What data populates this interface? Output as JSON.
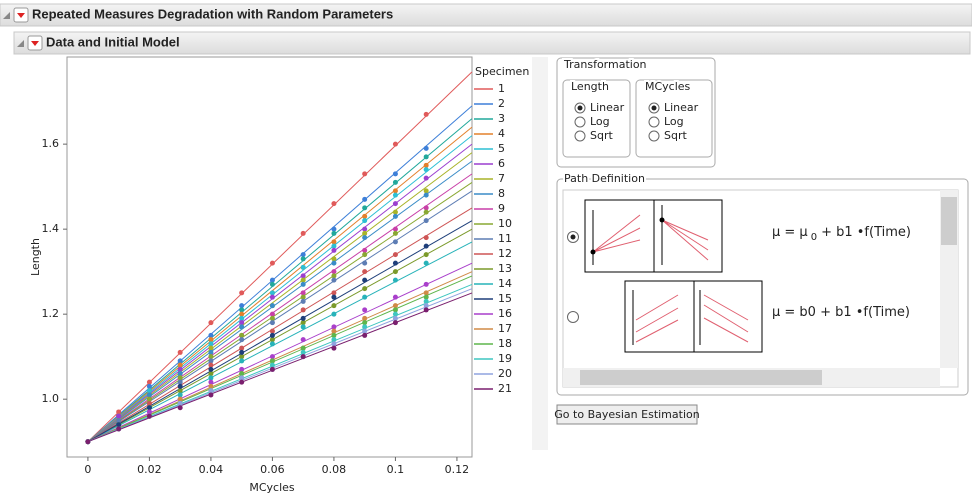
{
  "outline": {
    "title": "Repeated Measures Degradation with Random Parameters",
    "subtitle": "Data and Initial Model"
  },
  "chart_data": {
    "type": "scatter",
    "x_label": "MCycles",
    "y_label": "Length",
    "legend_title": "Specimen",
    "xlim": [
      -0.0068,
      0.1249
    ],
    "ylim": [
      0.864,
      1.805
    ],
    "xticks": [
      0,
      0.02,
      0.04,
      0.06,
      0.08,
      0.1,
      0.12
    ],
    "yticks": [
      {
        "value": 1,
        "label": "1.0"
      },
      {
        "value": 1.2,
        "label": "1.2"
      },
      {
        "value": 1.4,
        "label": "1.4"
      },
      {
        "value": 1.6,
        "label": "1.6"
      }
    ],
    "x": [
      0,
      0.01,
      0.02,
      0.03,
      0.04,
      0.05,
      0.06,
      0.07,
      0.08,
      0.09,
      0.1,
      0.11
    ],
    "fit_x": [
      0,
      0.1249
    ],
    "series": [
      {
        "name": "1",
        "color": "#e05a5a",
        "values": [
          0.9,
          0.97,
          1.04,
          1.11,
          1.18,
          1.25,
          1.32,
          1.39,
          1.46,
          1.53,
          1.6,
          1.67
        ],
        "fit": [
          0.9,
          1.77
        ]
      },
      {
        "name": "2",
        "color": "#3d7fd8",
        "values": [
          0.9,
          0.96,
          1.03,
          1.09,
          1.15,
          1.22,
          1.28,
          1.34,
          1.4,
          1.47,
          1.53,
          1.59
        ],
        "fit": [
          0.9,
          1.69
        ]
      },
      {
        "name": "3",
        "color": "#21a89b",
        "values": [
          0.9,
          0.96,
          1.02,
          1.08,
          1.14,
          1.21,
          1.27,
          1.33,
          1.39,
          1.45,
          1.51,
          1.57
        ],
        "fit": [
          0.9,
          1.66
        ]
      },
      {
        "name": "4",
        "color": "#e3802c",
        "values": [
          0.9,
          0.96,
          1.02,
          1.08,
          1.14,
          1.2,
          1.25,
          1.31,
          1.37,
          1.43,
          1.49,
          1.55
        ],
        "fit": [
          0.9,
          1.64
        ]
      },
      {
        "name": "5",
        "color": "#2dbfd4",
        "values": [
          0.9,
          0.96,
          1.02,
          1.07,
          1.13,
          1.19,
          1.25,
          1.31,
          1.36,
          1.42,
          1.48,
          1.54
        ],
        "fit": [
          0.9,
          1.62
        ]
      },
      {
        "name": "6",
        "color": "#9b3fcf",
        "values": [
          0.9,
          0.96,
          1.01,
          1.07,
          1.12,
          1.18,
          1.24,
          1.29,
          1.35,
          1.4,
          1.46,
          1.52
        ],
        "fit": [
          0.9,
          1.6
        ]
      },
      {
        "name": "7",
        "color": "#a8b428",
        "values": [
          0.9,
          0.95,
          1.01,
          1.06,
          1.12,
          1.17,
          1.22,
          1.28,
          1.33,
          1.39,
          1.44,
          1.49
        ],
        "fit": [
          0.9,
          1.58
        ]
      },
      {
        "name": "8",
        "color": "#3a8cc7",
        "values": [
          0.9,
          0.95,
          1.01,
          1.06,
          1.11,
          1.17,
          1.22,
          1.27,
          1.32,
          1.38,
          1.43,
          1.48
        ],
        "fit": [
          0.9,
          1.56
        ]
      },
      {
        "name": "9",
        "color": "#c83fa8",
        "values": [
          0.9,
          0.95,
          1,
          1.05,
          1.1,
          1.15,
          1.2,
          1.25,
          1.3,
          1.35,
          1.4,
          1.45
        ],
        "fit": [
          0.9,
          1.53
        ]
      },
      {
        "name": "10",
        "color": "#89a832",
        "values": [
          0.9,
          0.95,
          1,
          1.05,
          1.1,
          1.15,
          1.19,
          1.24,
          1.29,
          1.34,
          1.39,
          1.44
        ],
        "fit": [
          0.9,
          1.51
        ]
      },
      {
        "name": "11",
        "color": "#5d7db4",
        "values": [
          0.9,
          0.95,
          0.99,
          1.04,
          1.09,
          1.14,
          1.18,
          1.23,
          1.28,
          1.32,
          1.37,
          1.42
        ],
        "fit": [
          0.9,
          1.49
        ]
      },
      {
        "name": "12",
        "color": "#ce5555",
        "values": [
          0.9,
          0.94,
          0.99,
          1.03,
          1.08,
          1.12,
          1.16,
          1.21,
          1.25,
          1.3,
          1.34,
          1.38
        ],
        "fit": [
          0.9,
          1.45
        ]
      },
      {
        "name": "13",
        "color": "#7b9a2a",
        "values": [
          0.9,
          0.94,
          0.98,
          1.02,
          1.06,
          1.1,
          1.14,
          1.18,
          1.22,
          1.26,
          1.3,
          1.34
        ],
        "fit": [
          0.9,
          1.4
        ]
      },
      {
        "name": "14",
        "color": "#27b3b9",
        "values": [
          0.9,
          0.94,
          0.98,
          1.01,
          1.05,
          1.09,
          1.13,
          1.17,
          1.2,
          1.24,
          1.28,
          1.32
        ],
        "fit": [
          0.9,
          1.37
        ]
      },
      {
        "name": "15",
        "color": "#1e3f7a",
        "values": [
          0.9,
          0.94,
          0.98,
          1.03,
          1.07,
          1.11,
          1.15,
          1.19,
          1.24,
          1.28,
          1.32,
          1.36
        ],
        "fit": [
          0.9,
          1.42
        ]
      },
      {
        "name": "16",
        "color": "#a93fcb",
        "values": [
          0.9,
          0.93,
          0.97,
          1,
          1.04,
          1.07,
          1.1,
          1.14,
          1.17,
          1.21,
          1.24,
          1.27
        ],
        "fit": [
          0.9,
          1.32
        ]
      },
      {
        "name": "17",
        "color": "#d08a47",
        "values": [
          0.9,
          0.93,
          0.96,
          1,
          1.03,
          1.06,
          1.09,
          1.12,
          1.16,
          1.19,
          1.22,
          1.25
        ],
        "fit": [
          0.9,
          1.3
        ]
      },
      {
        "name": "18",
        "color": "#5fb64b",
        "values": [
          0.9,
          0.93,
          0.96,
          0.99,
          1.02,
          1.06,
          1.09,
          1.12,
          1.15,
          1.18,
          1.21,
          1.24
        ],
        "fit": [
          0.9,
          1.29
        ]
      },
      {
        "name": "19",
        "color": "#3ec6c0",
        "values": [
          0.9,
          0.93,
          0.96,
          0.99,
          1.02,
          1.05,
          1.08,
          1.11,
          1.14,
          1.17,
          1.2,
          1.23
        ],
        "fit": [
          0.9,
          1.27
        ]
      },
      {
        "name": "20",
        "color": "#8fa3df",
        "values": [
          0.9,
          0.93,
          0.96,
          0.99,
          1.02,
          1.05,
          1.07,
          1.1,
          1.13,
          1.16,
          1.19,
          1.22
        ],
        "fit": [
          0.9,
          1.26
        ]
      },
      {
        "name": "21",
        "color": "#7a1f6e",
        "values": [
          0.9,
          0.93,
          0.96,
          0.98,
          1.01,
          1.04,
          1.07,
          1.1,
          1.12,
          1.15,
          1.18,
          1.21
        ],
        "fit": [
          0.9,
          1.25
        ]
      }
    ]
  },
  "transformation": {
    "title": "Transformation",
    "groups": [
      {
        "title": "Length",
        "options": [
          "Linear",
          "Log",
          "Sqrt"
        ],
        "selected": 0
      },
      {
        "title": "MCycles",
        "options": [
          "Linear",
          "Log",
          "Sqrt"
        ],
        "selected": 0
      }
    ]
  },
  "path_definition": {
    "title": "Path Definition",
    "selected": 0,
    "formulas": [
      [
        "μ = μ",
        "0",
        "+ b1 •f(Time)"
      ],
      [
        "μ = b0 + b1 •f(Time)"
      ]
    ]
  },
  "button": "Go to Bayesian Estimation"
}
